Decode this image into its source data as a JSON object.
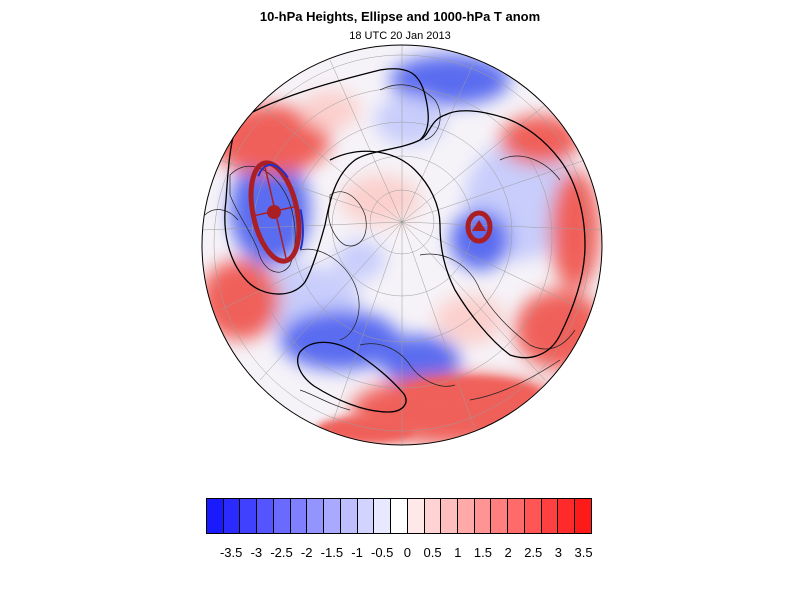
{
  "figure": {
    "title": "10-hPa Heights, Ellipse and 1000-hPa T anom",
    "subtitle": "18 UTC 20 Jan 2013"
  },
  "colorbar": {
    "colors": [
      "#1a1aff",
      "#2b2bff",
      "#4040ff",
      "#5555ff",
      "#6a6aff",
      "#7f7fff",
      "#9494ff",
      "#a9a9ff",
      "#bebeff",
      "#d3d3ff",
      "#e8e8ff",
      "#ffffff",
      "#ffe8e8",
      "#ffd3d3",
      "#ffbebe",
      "#ffa9a9",
      "#ff9494",
      "#ff7f7f",
      "#ff6a6a",
      "#ff5555",
      "#ff4040",
      "#ff2b2b",
      "#ff1a1a"
    ],
    "tick_labels": [
      "-3.5",
      "-3",
      "-2.5",
      "-2",
      "-1.5",
      "-1",
      "-0.5",
      "0",
      "0.5",
      "1",
      "1.5",
      "2",
      "2.5",
      "3",
      "3.5"
    ]
  },
  "map": {
    "projection": "orthographic-north-polar",
    "fill_colors": {
      "cold": "#5a6cf0",
      "cold_light": "#c8cdfb",
      "warm": "#f0605a",
      "warm_light": "#fbd0cd",
      "neutral": "#f6f3f8"
    },
    "ellipse_color": "#aa1f24",
    "contour_color": "#000000"
  }
}
